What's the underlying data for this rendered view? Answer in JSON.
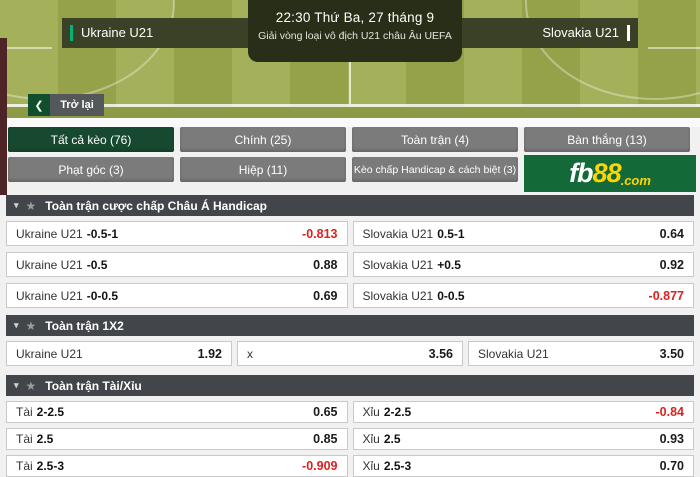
{
  "match_header": {
    "home_team": "Ukraine U21",
    "away_team": "Slovakia U21",
    "kickoff": "22:30 Thứ Ba, 27 tháng 9",
    "league": "Giải vòng loại vô địch U21 châu Âu UEFA"
  },
  "back_button": {
    "chevron": "❮",
    "label": "Trở lại"
  },
  "tabs": [
    {
      "label": "Tất cả kèo (76)",
      "active": true
    },
    {
      "label": "Chính (25)",
      "active": false
    },
    {
      "label": "Toàn trận (4)",
      "active": false
    },
    {
      "label": "Bàn thắng (13)",
      "active": false
    },
    {
      "label": "Phạt góc (3)",
      "active": false
    },
    {
      "label": "Hiệp (11)",
      "active": false
    },
    {
      "label": "Kèo chấp Handicap & cách biệt (3)",
      "active": false
    }
  ],
  "logo": {
    "part1": "fb",
    "part2": "88",
    "part3": ".com"
  },
  "section_icons": {
    "caret": "▾",
    "star": "★"
  },
  "sections": [
    {
      "title": "Toàn trận cược chấp Châu Á Handicap",
      "rows": [
        {
          "cells": [
            {
              "team": "Ukraine U21",
              "line": "-0.5-1",
              "odds": "-0.813"
            },
            {
              "team": "Slovakia U21",
              "line": "0.5-1",
              "odds": "0.64"
            }
          ]
        },
        {
          "cells": [
            {
              "team": "Ukraine U21",
              "line": "-0.5",
              "odds": "0.88"
            },
            {
              "team": "Slovakia U21",
              "line": "+0.5",
              "odds": "0.92"
            }
          ]
        },
        {
          "cells": [
            {
              "team": "Ukraine U21",
              "line": "-0-0.5",
              "odds": "0.69"
            },
            {
              "team": "Slovakia U21",
              "line": "0-0.5",
              "odds": "-0.877"
            }
          ]
        }
      ]
    },
    {
      "title": "Toàn trận 1X2",
      "rows": [
        {
          "cells": [
            {
              "team": "Ukraine U21",
              "line": "",
              "odds": "1.92"
            },
            {
              "team": "x",
              "line": "",
              "odds": "3.56"
            },
            {
              "team": "Slovakia U21",
              "line": "",
              "odds": "3.50"
            }
          ]
        }
      ]
    },
    {
      "title": "Toàn trận Tài/Xỉu",
      "rows": [
        {
          "cells": [
            {
              "team": "Tài",
              "line": "2-2.5",
              "odds": "0.65"
            },
            {
              "team": "Xỉu",
              "line": "2-2.5",
              "odds": "-0.84"
            }
          ]
        },
        {
          "cells": [
            {
              "team": "Tài",
              "line": "2.5",
              "odds": "0.85"
            },
            {
              "team": "Xỉu",
              "line": "2.5",
              "odds": "0.93"
            }
          ]
        },
        {
          "cells": [
            {
              "team": "Tài",
              "line": "2.5-3",
              "odds": "-0.909"
            },
            {
              "team": "Xỉu",
              "line": "2.5-3",
              "odds": "0.70"
            }
          ]
        }
      ]
    }
  ],
  "colors": {
    "field_green": "#9fab50",
    "band_dark_olive": "#3b4126",
    "center_box": "#292e18",
    "home_accent": "#00b473",
    "away_accent": "#ffffff",
    "active_tab_green": "#174930",
    "tab_gray": "#7b7b7b",
    "brand_green": "#136937",
    "brand_yellow": "#ffd400",
    "section_header": "#42464a",
    "negative_odds_red": "#e01f1f",
    "edge_strip_maroon": "#4e2427"
  }
}
